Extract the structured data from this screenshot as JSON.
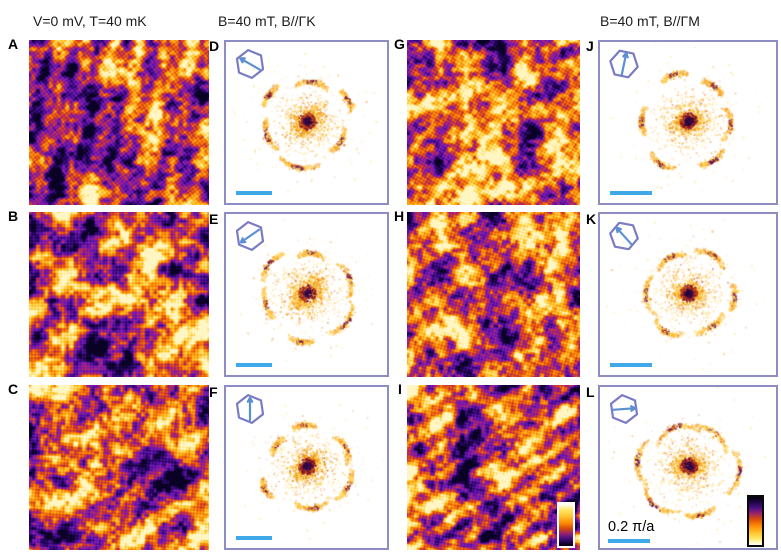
{
  "figure": {
    "headers": [
      {
        "text": "V=0 mV, T=40 mK"
      },
      {
        "text": "B=40 mT, B//ΓK"
      },
      {
        "text": "B=40 mT, B//ΓM"
      }
    ],
    "scale_bar_label": "0.2 π/a"
  },
  "colors": {
    "background": "#ffffff",
    "text": "#1c1c1c",
    "fft_border": "#8d8dc3",
    "hexagon_stroke": "#7b7bc4",
    "arrow_blue": "#5b8fd4",
    "scalebar_blue": "#3fa9e8",
    "colormap_low": "#0a0224",
    "colormap_mid": "#c24a12",
    "colormap_high": "#fff6c4"
  },
  "panels": [
    {
      "label": "A",
      "type": "stm",
      "seed": 101,
      "band_angle": 8,
      "band_len": 26,
      "band_amp": 0.24
    },
    {
      "label": "B",
      "type": "stm",
      "seed": 202,
      "band_angle": 45,
      "band_len": 42,
      "band_amp": 0.26
    },
    {
      "label": "C",
      "type": "stm",
      "seed": 303,
      "band_angle": 50,
      "band_len": 36,
      "band_amp": 0.2
    },
    {
      "label": "D",
      "type": "fft",
      "seed": 193,
      "arrow_angle": 150,
      "hex_rot": 8,
      "streak_base": 85,
      "streak_r": 44,
      "blob_angle": 40,
      "blob_sx": 9,
      "streak_len": 16
    },
    {
      "label": "E",
      "type": "fft",
      "seed": 57,
      "arrow_angle": 215,
      "hex_rot": 8,
      "streak_base": 80,
      "streak_r": 46,
      "blob_angle": 42,
      "blob_sx": 10,
      "streak_len": 16
    },
    {
      "label": "F",
      "type": "fft",
      "seed": 261,
      "arrow_angle": 90,
      "hex_rot": 8,
      "streak_base": 90,
      "streak_r": 43,
      "blob_angle": 35,
      "blob_sx": 8,
      "streak_len": 14
    },
    {
      "label": "G",
      "type": "stm",
      "seed": 404,
      "band_angle": 75,
      "band_len": 34,
      "band_amp": 0.13
    },
    {
      "label": "H",
      "type": "stm",
      "seed": 505,
      "band_angle": 60,
      "band_len": 30,
      "band_amp": 0.14
    },
    {
      "label": "I",
      "type": "stm",
      "seed": 606,
      "band_angle": 55,
      "band_len": 22,
      "band_amp": 0.25
    },
    {
      "label": "J",
      "type": "fft",
      "seed": 389,
      "arrow_angle": 78,
      "hex_rot": 18,
      "streak_base": 55,
      "streak_r": 47,
      "blob_angle": 10,
      "blob_sx": 7.5,
      "streak_len": 17
    },
    {
      "label": "K",
      "type": "fft",
      "seed": 419,
      "arrow_angle": 132,
      "hex_rot": 20,
      "streak_base": 60,
      "streak_r": 45,
      "blob_angle": 5,
      "blob_sx": 7,
      "streak_len": 16
    },
    {
      "label": "L",
      "type": "fft",
      "seed": 523,
      "arrow_angle": 4,
      "hex_rot": 8,
      "streak_base": 50,
      "streak_r": 48,
      "blob_angle": 0,
      "blob_sx": 8,
      "streak_len": 20
    }
  ]
}
